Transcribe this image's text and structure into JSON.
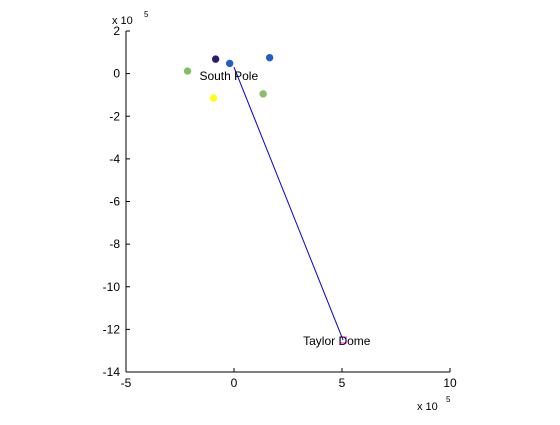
{
  "chart_data": {
    "type": "scatter",
    "title": "",
    "xlabel": "",
    "ylabel": "",
    "xlim": [
      -5,
      10
    ],
    "ylim": [
      -14,
      2
    ],
    "xticks": [
      -5,
      0,
      5,
      10
    ],
    "yticks": [
      2,
      0,
      -2,
      -4,
      -6,
      -8,
      -10,
      -12,
      -14
    ],
    "xticklabels": [
      "-5",
      "0",
      "5",
      "10"
    ],
    "yticklabels": [
      "2",
      "0",
      "-2",
      "-4",
      "-6",
      "-8",
      "-10",
      "-12",
      "-14"
    ],
    "x_multiplier_label": "x 10",
    "x_multiplier_exp": "5",
    "y_multiplier_label": "x 10",
    "y_multiplier_exp": "5",
    "grid": false,
    "points": [
      {
        "x": -0.85,
        "y": 0.68,
        "color": "#2e1a6b"
      },
      {
        "x": -0.2,
        "y": 0.48,
        "color": "#1f5fc9"
      },
      {
        "x": 1.65,
        "y": 0.75,
        "color": "#1f5fc9"
      },
      {
        "x": -2.15,
        "y": 0.12,
        "color": "#7fbf66"
      },
      {
        "x": 1.35,
        "y": -0.95,
        "color": "#8dbd6a"
      },
      {
        "x": -0.95,
        "y": -1.15,
        "color": "#ffff1a"
      }
    ],
    "lines": [
      {
        "x": [
          0.0,
          5.05
        ],
        "y": [
          0.3,
          -12.5
        ],
        "color": "#0000cc"
      }
    ],
    "markers": [
      {
        "x": 5.05,
        "y": -12.5,
        "shape": "square",
        "color": "#ff00ff"
      }
    ],
    "annotations": [
      {
        "text": "South Pole",
        "x": -1.6,
        "y": -0.1
      },
      {
        "text": "Taylor Dome",
        "x": 3.2,
        "y": -12.55
      }
    ]
  }
}
